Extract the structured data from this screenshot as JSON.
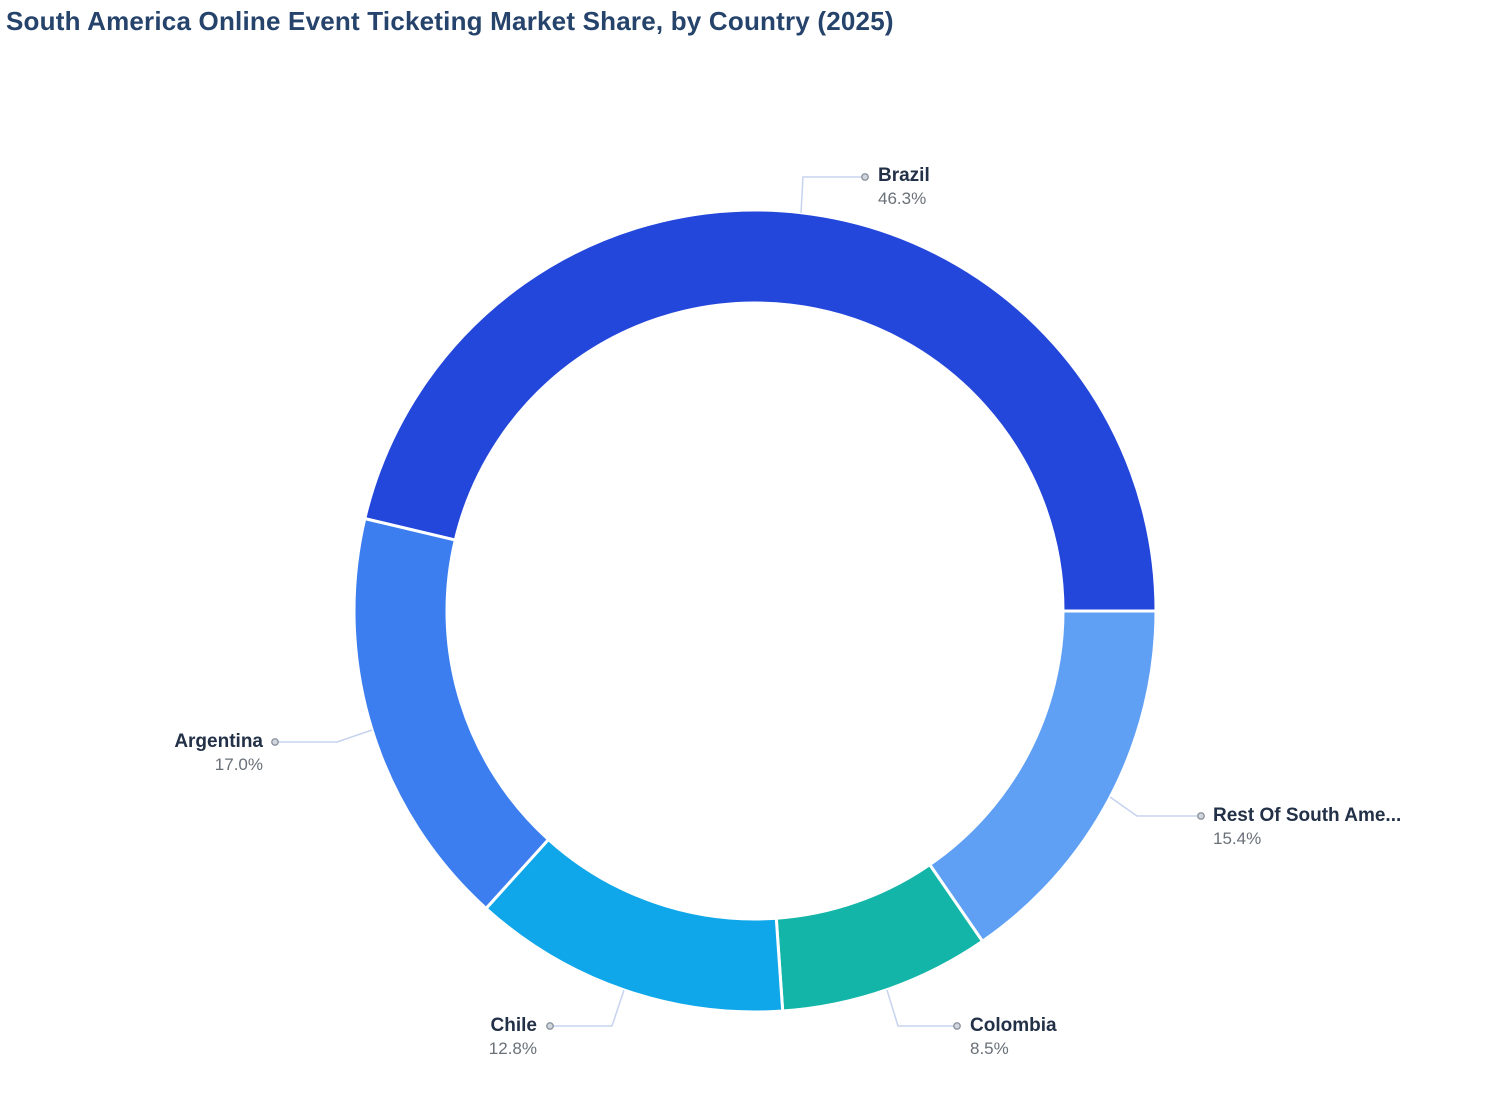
{
  "chart_data": {
    "type": "pie",
    "variant": "donut",
    "title": "South America Online Event Ticketing Market Share, by Country (2025)",
    "unit": "%",
    "legend": "none",
    "data_labels": "outside-with-leader-lines",
    "segments": [
      {
        "id": "brazil",
        "label": "Brazil",
        "value": 46.3,
        "percent_label": "46.3%",
        "color": "#2447db"
      },
      {
        "id": "rest-of-south-america",
        "label": "Rest Of South Ame...",
        "value": 15.4,
        "percent_label": "15.4%",
        "color": "#5fa0f5"
      },
      {
        "id": "colombia",
        "label": "Colombia",
        "value": 8.5,
        "percent_label": "8.5%",
        "color": "#12b5a7"
      },
      {
        "id": "chile",
        "label": "Chile",
        "value": 12.8,
        "percent_label": "12.8%",
        "color": "#0fa7e9"
      },
      {
        "id": "argentina",
        "label": "Argentina",
        "value": 17.0,
        "percent_label": "17.0%",
        "color": "#3c7ef0"
      }
    ],
    "colors": {
      "title_text": "#25436b",
      "label_text": "#233148",
      "percent_text": "#697078",
      "leader_line": "#c7d3ee",
      "marker_dot_fill": "#d2d7de",
      "marker_dot_stroke": "#8b949f",
      "slice_border": "#ffffff",
      "background": "#ffffff"
    }
  }
}
